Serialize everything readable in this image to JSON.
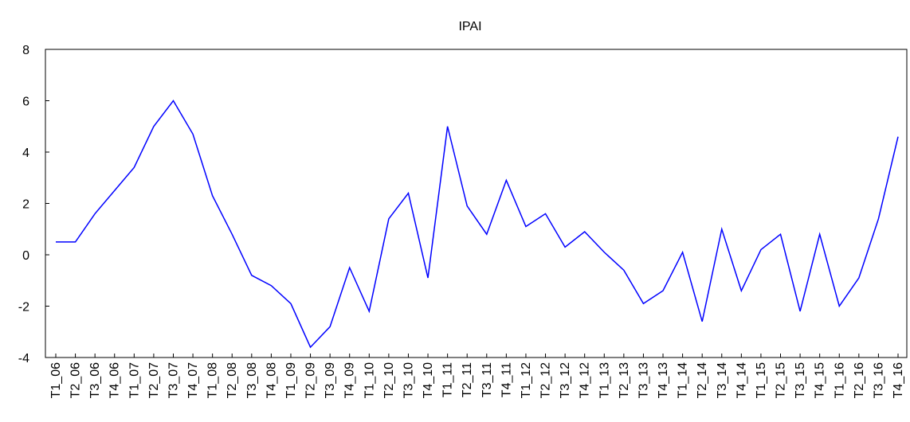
{
  "chart_data": {
    "type": "line",
    "title": "IPAI",
    "categories": [
      "T1_06",
      "T2_06",
      "T3_06",
      "T4_06",
      "T1_07",
      "T2_07",
      "T3_07",
      "T4_07",
      "T1_08",
      "T2_08",
      "T3_08",
      "T4_08",
      "T1_09",
      "T2_09",
      "T3_09",
      "T4_09",
      "T1_10",
      "T2_10",
      "T3_10",
      "T4_10",
      "T1_11",
      "T2_11",
      "T3_11",
      "T4_11",
      "T1_12",
      "T2_12",
      "T3_12",
      "T4_12",
      "T1_13",
      "T2_13",
      "T3_13",
      "T4_13",
      "T1_14",
      "T2_14",
      "T3_14",
      "T4_14",
      "T1_15",
      "T2_15",
      "T3_15",
      "T4_15",
      "T1_16",
      "T2_16",
      "T3_16",
      "T4_16"
    ],
    "series": [
      {
        "name": "IPAI",
        "color": "#0000ff",
        "values": [
          0.5,
          0.5,
          1.6,
          2.5,
          3.4,
          5.0,
          6.0,
          4.7,
          2.3,
          0.8,
          -0.8,
          -1.2,
          -1.9,
          -3.6,
          -2.8,
          -0.5,
          -2.2,
          1.4,
          2.4,
          -0.9,
          5.0,
          1.9,
          0.8,
          2.9,
          1.1,
          1.6,
          0.3,
          0.9,
          0.1,
          -0.6,
          -1.9,
          -1.4,
          0.1,
          -2.6,
          1.0,
          -1.4,
          0.2,
          0.8,
          -2.2,
          0.8,
          -2.0,
          -0.9,
          1.4,
          4.6
        ]
      }
    ],
    "ylim": [
      -4,
      8
    ],
    "yticks": [
      -4,
      -2,
      0,
      2,
      4,
      6,
      8
    ],
    "grid": false
  }
}
